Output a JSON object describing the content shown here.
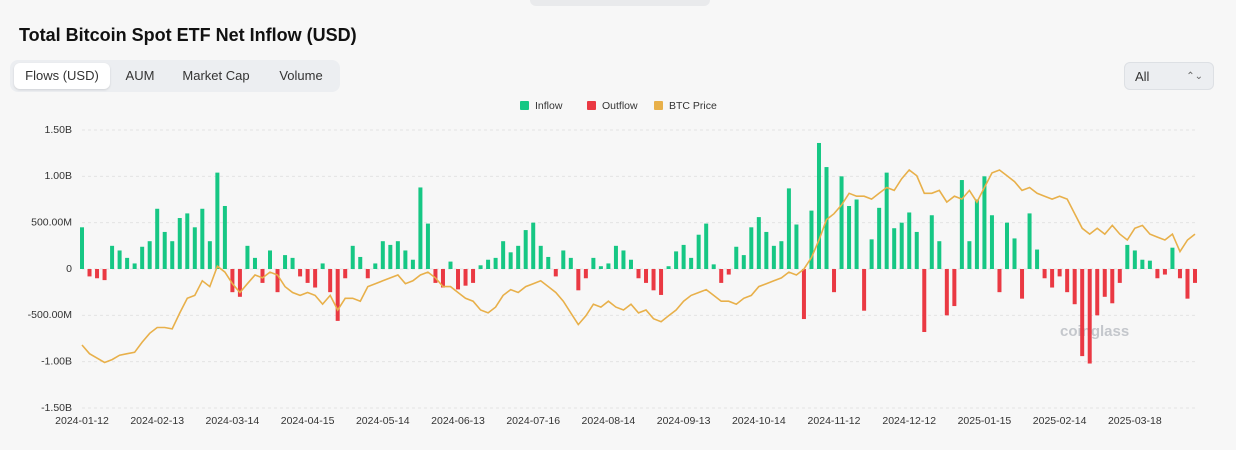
{
  "header": {
    "title": "Total Bitcoin Spot ETF Net Inflow (USD)",
    "tabs": [
      "Flows (USD)",
      "AUM",
      "Market Cap",
      "Volume"
    ],
    "range_select": "All"
  },
  "watermark": "coinglass",
  "chart_data": {
    "type": "bar",
    "bar_legend": [
      {
        "name": "Inflow",
        "color": "#16c784"
      },
      {
        "name": "Outflow",
        "color": "#ea3943"
      }
    ],
    "categories": [
      "2024-01-12",
      null,
      null,
      null,
      null,
      null,
      null,
      null,
      null,
      null,
      "2024-02-13",
      null,
      null,
      null,
      null,
      null,
      null,
      null,
      null,
      null,
      "2024-03-14",
      null,
      null,
      null,
      null,
      null,
      null,
      null,
      null,
      null,
      "2024-04-15",
      null,
      null,
      null,
      null,
      null,
      null,
      null,
      null,
      null,
      "2024-05-14",
      null,
      null,
      null,
      null,
      null,
      null,
      null,
      null,
      null,
      "2024-06-13",
      null,
      null,
      null,
      null,
      null,
      null,
      null,
      null,
      null,
      "2024-07-16",
      null,
      null,
      null,
      null,
      null,
      null,
      null,
      null,
      null,
      "2024-08-14",
      null,
      null,
      null,
      null,
      null,
      null,
      null,
      null,
      null,
      "2024-09-13",
      null,
      null,
      null,
      null,
      null,
      null,
      null,
      null,
      null,
      "2024-10-14",
      null,
      null,
      null,
      null,
      null,
      null,
      null,
      null,
      null,
      "2024-11-12",
      null,
      null,
      null,
      null,
      null,
      null,
      null,
      null,
      null,
      "2024-12-12",
      null,
      null,
      null,
      null,
      null,
      null,
      null,
      null,
      null,
      "2025-01-15",
      null,
      null,
      null,
      null,
      null,
      null,
      null,
      null,
      null,
      "2025-02-14",
      null,
      null,
      null,
      null,
      null,
      null,
      null,
      null,
      null,
      "2025-03-18",
      null,
      null,
      null,
      null,
      null,
      null,
      null,
      null
    ],
    "values": [
      450000000.0,
      -80000000.0,
      -100000000.0,
      -120000000.0,
      250000000.0,
      200000000.0,
      120000000.0,
      60000000.0,
      240000000.0,
      300000000.0,
      650000000.0,
      400000000.0,
      300000000.0,
      550000000.0,
      600000000.0,
      450000000.0,
      650000000.0,
      300000000.0,
      1040000000.0,
      680000000.0,
      -250000000.0,
      -300000000.0,
      250000000.0,
      120000000.0,
      -150000000.0,
      200000000.0,
      -250000000.0,
      150000000.0,
      120000000.0,
      -80000000.0,
      -150000000.0,
      -200000000.0,
      60000000.0,
      -250000000.0,
      -560000000.0,
      -100000000.0,
      250000000.0,
      130000000.0,
      -100000000.0,
      60000000.0,
      300000000.0,
      260000000.0,
      300000000.0,
      200000000.0,
      100000000.0,
      880000000.0,
      490000000.0,
      -150000000.0,
      -200000000.0,
      80000000.0,
      -220000000.0,
      -180000000.0,
      -150000000.0,
      40000000.0,
      100000000.0,
      120000000.0,
      300000000.0,
      180000000.0,
      250000000.0,
      420000000.0,
      500000000.0,
      250000000.0,
      130000000.0,
      -80000000.0,
      200000000.0,
      120000000.0,
      -230000000.0,
      -100000000.0,
      120000000.0,
      30000000.0,
      60000000.0,
      250000000.0,
      200000000.0,
      100000000.0,
      -100000000.0,
      -150000000.0,
      -230000000.0,
      -280000000.0,
      30000000.0,
      190000000.0,
      260000000.0,
      120000000.0,
      370000000.0,
      490000000.0,
      50000000.0,
      -150000000.0,
      -60000000.0,
      240000000.0,
      150000000.0,
      450000000.0,
      560000000.0,
      400000000.0,
      250000000.0,
      300000000.0,
      870000000.0,
      480000000.0,
      -540000000.0,
      630000000.0,
      1360000000.0,
      1100000000.0,
      -250000000.0,
      1000000000.0,
      680000000.0,
      750000000.0,
      -450000000.0,
      320000000.0,
      660000000.0,
      1040000000.0,
      440000000.0,
      500000000.0,
      610000000.0,
      400000000.0,
      -680000000.0,
      580000000.0,
      300000000.0,
      -500000000.0,
      -400000000.0,
      960000000.0,
      300000000.0,
      750000000.0,
      1000000000.0,
      580000000.0,
      -250000000.0,
      500000000.0,
      330000000.0,
      -320000000.0,
      600000000.0,
      210000000.0,
      -100000000.0,
      -200000000.0,
      -80000000.0,
      -250000000.0,
      -380000000.0,
      -940000000.0,
      -1020000000.0,
      -500000000.0,
      -300000000.0,
      -370000000.0,
      -150000000.0,
      260000000.0,
      200000000.0,
      100000000.0,
      90000000.0,
      -100000000.0,
      -60000000.0,
      230000000.0,
      -100000000.0,
      -320000000.0,
      -150000000.0
    ],
    "series": [
      {
        "name": "BTC Price",
        "color": "#e8b04a",
        "axis": "y2",
        "values": [
          46000,
          43000,
          41500,
          40000,
          41000,
          42500,
          43000,
          43500,
          47000,
          50000,
          52000,
          52000,
          51500,
          57000,
          62000,
          63000,
          68000,
          66000,
          73000,
          71000,
          67000,
          64000,
          67000,
          70000,
          69000,
          71000,
          70000,
          66000,
          64000,
          63000,
          64000,
          63000,
          60000,
          63000,
          58000,
          62000,
          62000,
          61000,
          66000,
          67000,
          68000,
          69000,
          70000,
          67000,
          68000,
          70000,
          71000,
          69000,
          66000,
          66000,
          64000,
          62000,
          61000,
          58000,
          57000,
          59000,
          63000,
          65000,
          64000,
          66000,
          67000,
          68000,
          66000,
          64000,
          61000,
          57000,
          53000,
          56000,
          60000,
          59000,
          61000,
          59000,
          58000,
          60000,
          57000,
          58000,
          55000,
          54000,
          56000,
          58000,
          61000,
          63000,
          64000,
          65000,
          63000,
          61000,
          61000,
          60000,
          62000,
          63000,
          66000,
          67000,
          68000,
          69000,
          71000,
          70000,
          72000,
          76000,
          82000,
          89000,
          91000,
          94000,
          98000,
          97000,
          97000,
          96000,
          98000,
          100000,
          99000,
          103000,
          106000,
          104000,
          98000,
          98000,
          99000,
          95000,
          97000,
          96000,
          99000,
          95000,
          100000,
          105000,
          106000,
          104000,
          102000,
          99000,
          100000,
          98000,
          97000,
          96000,
          97000,
          96000,
          91000,
          86000,
          84000,
          86000,
          84000,
          87000,
          84000,
          82000,
          86000,
          87000,
          84000,
          83000,
          82000,
          84000,
          78000,
          82000,
          84000
        ]
      }
    ],
    "ylim": [
      -1500000000.0,
      1500000000.0
    ],
    "yticks": [
      {
        "value": 1500000000.0,
        "label": "1.50B"
      },
      {
        "value": 1000000000.0,
        "label": "1.00B"
      },
      {
        "value": 500000000.0,
        "label": "500.00M"
      },
      0,
      {
        "value": -500000000.0,
        "label": "-500.00M"
      },
      {
        "value": -1000000000.0,
        "label": "-1.00B"
      },
      {
        "value": -1500000000.0,
        "label": "-1.50B"
      }
    ],
    "y2lim": [
      24400,
      119700
    ],
    "grid": true
  }
}
